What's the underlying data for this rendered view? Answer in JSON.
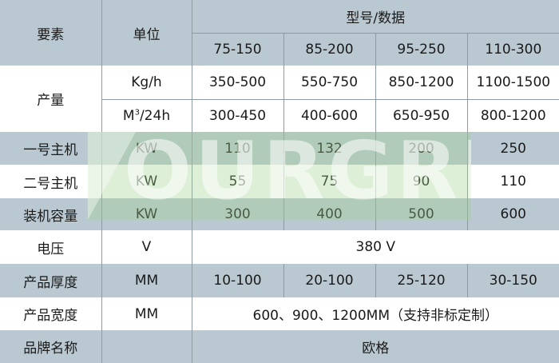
{
  "header": {
    "col_element": "要素",
    "col_unit": "单位",
    "col_model": "型号/数据",
    "models": [
      "75-150",
      "85-200",
      "95-250",
      "110-300"
    ]
  },
  "rows": {
    "output": {
      "label": "产量",
      "kgh_unit": "Kg/h",
      "kgh_values": [
        "350-500",
        "550-750",
        "850-1200",
        "1100-1500"
      ],
      "m3_unit_base": "M",
      "m3_unit_sup": "3",
      "m3_unit_rest": "/24h",
      "m3_values": [
        "300-450",
        "400-600",
        "650-950",
        "800-1200"
      ]
    },
    "main1": {
      "label": "一号主机",
      "unit": "KW",
      "values": [
        "110",
        "132",
        "200",
        "250"
      ]
    },
    "main2": {
      "label": "二号主机",
      "unit": "KW",
      "values": [
        "55",
        "75",
        "90",
        "110"
      ]
    },
    "capacity": {
      "label": "装机容量",
      "unit": "KW",
      "values": [
        "300",
        "400",
        "500",
        "600"
      ]
    },
    "voltage": {
      "label": "电压",
      "unit": "V",
      "value": "380 V"
    },
    "thickness": {
      "label": "产品厚度",
      "unit": "MM",
      "values": [
        "10-100",
        "20-100",
        "25-120",
        "30-150"
      ]
    },
    "width": {
      "label": "产品宽度",
      "unit": "MM",
      "value": "600、900、1200MM（支持非标定制）"
    },
    "brand": {
      "label": "品牌名称",
      "unit": "",
      "value": "欧格"
    }
  },
  "watermark": {
    "text": "OURGREEN",
    "color": "#a0d28c"
  },
  "colors": {
    "header_bg": "#b9c8d1",
    "row_alt_bg": "#ffffff"
  }
}
